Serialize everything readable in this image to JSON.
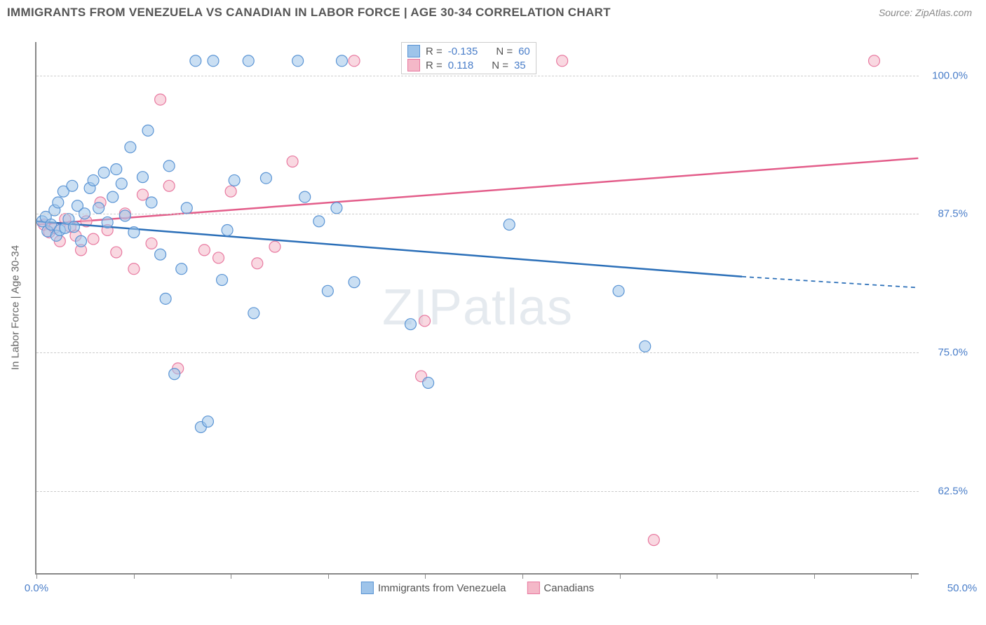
{
  "title": "IMMIGRANTS FROM VENEZUELA VS CANADIAN IN LABOR FORCE | AGE 30-34 CORRELATION CHART",
  "source_label": "Source: ZipAtlas.com",
  "ylabel": "In Labor Force | Age 30-34",
  "watermark": {
    "bold": "ZIP",
    "light": "atlas"
  },
  "chart": {
    "type": "scatter",
    "background_color": "#ffffff",
    "grid_color": "#cccccc",
    "axis_color": "#888888",
    "tick_label_color": "#4a7ec9",
    "xlim": [
      0,
      50
    ],
    "ylim": [
      55,
      103
    ],
    "yticks": [
      62.5,
      75.0,
      87.5,
      100.0
    ],
    "ytick_labels": [
      "62.5%",
      "75.0%",
      "87.5%",
      "100.0%"
    ],
    "xticks": [
      0,
      5.5,
      11,
      16.5,
      22,
      27.5,
      33,
      38.5,
      44,
      49.5
    ],
    "xtick_labels": {
      "0": "0.0%",
      "50": "50.0%"
    },
    "marker_radius": 8,
    "marker_opacity": 0.55,
    "line_width": 2.5,
    "series": [
      {
        "name": "Immigrants from Venezuela",
        "color_fill": "#9ec4ea",
        "color_stroke": "#5a94d4",
        "line_color": "#2b6fb8",
        "R": "-0.135",
        "N": "60",
        "points": [
          [
            0.3,
            86.8
          ],
          [
            0.5,
            87.2
          ],
          [
            0.6,
            85.9
          ],
          [
            0.8,
            86.5
          ],
          [
            1.0,
            87.8
          ],
          [
            1.1,
            85.5
          ],
          [
            1.2,
            88.5
          ],
          [
            1.3,
            86.0
          ],
          [
            1.5,
            89.5
          ],
          [
            1.6,
            86.2
          ],
          [
            1.8,
            87.0
          ],
          [
            2.0,
            90.0
          ],
          [
            2.1,
            86.3
          ],
          [
            2.3,
            88.2
          ],
          [
            2.5,
            85.0
          ],
          [
            2.7,
            87.5
          ],
          [
            3.0,
            89.8
          ],
          [
            3.2,
            90.5
          ],
          [
            3.5,
            88.0
          ],
          [
            3.8,
            91.2
          ],
          [
            4.0,
            86.7
          ],
          [
            4.3,
            89.0
          ],
          [
            4.5,
            91.5
          ],
          [
            4.8,
            90.2
          ],
          [
            5.0,
            87.3
          ],
          [
            5.3,
            93.5
          ],
          [
            5.5,
            85.8
          ],
          [
            6.0,
            90.8
          ],
          [
            6.3,
            95.0
          ],
          [
            6.5,
            88.5
          ],
          [
            7.0,
            83.8
          ],
          [
            7.3,
            79.8
          ],
          [
            7.5,
            91.8
          ],
          [
            7.8,
            73.0
          ],
          [
            8.2,
            82.5
          ],
          [
            8.5,
            88.0
          ],
          [
            9.0,
            101.3
          ],
          [
            9.3,
            68.2
          ],
          [
            9.7,
            68.7
          ],
          [
            10.0,
            101.3
          ],
          [
            10.5,
            81.5
          ],
          [
            10.8,
            86.0
          ],
          [
            11.2,
            90.5
          ],
          [
            12.0,
            101.3
          ],
          [
            12.3,
            78.5
          ],
          [
            13.0,
            90.7
          ],
          [
            14.8,
            101.3
          ],
          [
            15.2,
            89.0
          ],
          [
            16.0,
            86.8
          ],
          [
            16.5,
            80.5
          ],
          [
            17.0,
            88.0
          ],
          [
            17.3,
            101.3
          ],
          [
            18.0,
            81.3
          ],
          [
            21.2,
            77.5
          ],
          [
            22.2,
            72.2
          ],
          [
            26.8,
            86.5
          ],
          [
            33.0,
            80.5
          ],
          [
            34.5,
            75.5
          ]
        ],
        "trend": {
          "x1": 0,
          "y1": 86.8,
          "x2": 40,
          "y2": 81.8,
          "dash_x2": 50,
          "dash_y2": 80.8
        }
      },
      {
        "name": "Canadians",
        "color_fill": "#f4b8c8",
        "color_stroke": "#e879a0",
        "line_color": "#e35d8a",
        "R": "0.118",
        "N": "35",
        "points": [
          [
            0.4,
            86.5
          ],
          [
            0.7,
            85.8
          ],
          [
            1.0,
            86.2
          ],
          [
            1.3,
            85.0
          ],
          [
            1.6,
            87.0
          ],
          [
            1.9,
            86.3
          ],
          [
            2.2,
            85.5
          ],
          [
            2.5,
            84.2
          ],
          [
            2.8,
            86.8
          ],
          [
            3.2,
            85.2
          ],
          [
            3.6,
            88.5
          ],
          [
            4.0,
            86.0
          ],
          [
            4.5,
            84.0
          ],
          [
            5.0,
            87.5
          ],
          [
            5.5,
            82.5
          ],
          [
            6.0,
            89.2
          ],
          [
            6.5,
            84.8
          ],
          [
            7.0,
            97.8
          ],
          [
            7.5,
            90.0
          ],
          [
            8.0,
            73.5
          ],
          [
            9.5,
            84.2
          ],
          [
            10.3,
            83.5
          ],
          [
            11.0,
            89.5
          ],
          [
            12.5,
            83.0
          ],
          [
            13.5,
            84.5
          ],
          [
            14.5,
            92.2
          ],
          [
            18.0,
            101.3
          ],
          [
            21.8,
            72.8
          ],
          [
            22.0,
            77.8
          ],
          [
            29.8,
            101.3
          ],
          [
            35.0,
            58.0
          ],
          [
            47.5,
            101.3
          ]
        ],
        "trend": {
          "x1": 0,
          "y1": 86.5,
          "x2": 50,
          "y2": 92.5
        }
      }
    ]
  },
  "legend_top": {
    "labels": {
      "R": "R =",
      "N": "N ="
    }
  },
  "legend_bottom": [
    {
      "label": "Immigrants from Venezuela",
      "fill": "#9ec4ea",
      "stroke": "#5a94d4"
    },
    {
      "label": "Canadians",
      "fill": "#f4b8c8",
      "stroke": "#e879a0"
    }
  ]
}
